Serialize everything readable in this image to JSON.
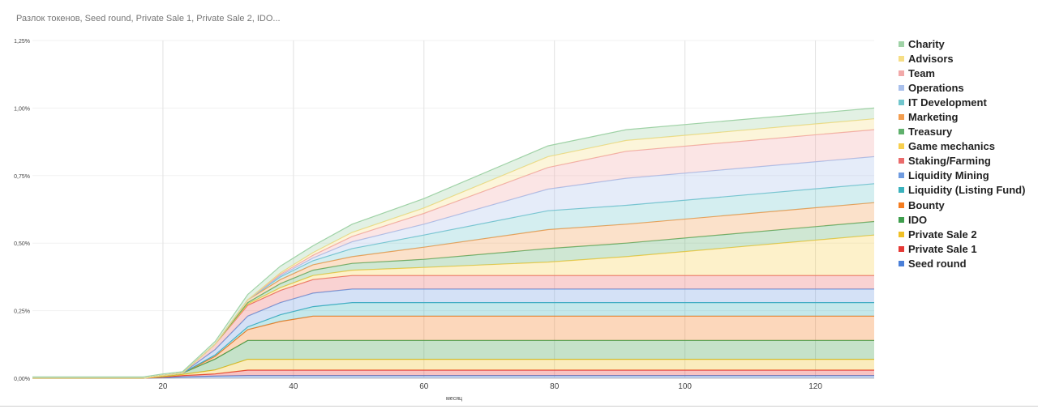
{
  "chart_data": {
    "type": "area",
    "stacked": true,
    "title": "Разлок токенов, Seed round, Private Sale 1, Private Sale 2, IDO...",
    "xlabel": "месяц",
    "ylabel": "",
    "xlim": [
      0,
      129
    ],
    "ylim": [
      0,
      1.25
    ],
    "x_ticks": [
      20,
      40,
      60,
      80,
      100,
      120
    ],
    "x_tick_labels": [
      "20",
      "40",
      "60",
      "80",
      "100",
      "120"
    ],
    "y_ticks": [
      0,
      0.25,
      0.5,
      0.75,
      1.0,
      1.25
    ],
    "y_tick_labels": [
      "0,00%",
      "0,25%",
      "0,50%",
      "0,75%",
      "1,00%",
      "1,25%"
    ],
    "grid": "vertical",
    "legend_position": "right",
    "x": [
      0,
      10,
      13,
      17,
      20,
      23,
      28,
      33,
      38,
      43,
      49,
      60,
      79,
      91,
      129
    ],
    "series": [
      {
        "name": "Seed round",
        "color": "#4a7fd8",
        "values": [
          0,
          0,
          0,
          0,
          0.002,
          0.005,
          0.008,
          0.01,
          0.01,
          0.01,
          0.01,
          0.01,
          0.01,
          0.01,
          0.01
        ]
      },
      {
        "name": "Private Sale 1",
        "color": "#e53935",
        "values": [
          0,
          0,
          0,
          0,
          0.002,
          0.005,
          0.008,
          0.02,
          0.02,
          0.02,
          0.02,
          0.02,
          0.02,
          0.02,
          0.02
        ]
      },
      {
        "name": "Private Sale 2",
        "color": "#f0c026",
        "values": [
          0,
          0,
          0,
          0,
          0.002,
          0.004,
          0.015,
          0.04,
          0.04,
          0.04,
          0.04,
          0.04,
          0.04,
          0.04,
          0.04
        ]
      },
      {
        "name": "IDO",
        "color": "#3f9e4d",
        "values": [
          0,
          0,
          0,
          0,
          0.005,
          0.005,
          0.04,
          0.07,
          0.07,
          0.07,
          0.07,
          0.07,
          0.07,
          0.07,
          0.07
        ]
      },
      {
        "name": "Bounty",
        "color": "#f57c1f",
        "values": [
          0,
          0,
          0,
          0,
          0,
          0,
          0.01,
          0.04,
          0.07,
          0.09,
          0.09,
          0.09,
          0.09,
          0.09,
          0.09
        ]
      },
      {
        "name": "Liquidity (Listing Fund)",
        "color": "#3ab2bd",
        "values": [
          0,
          0,
          0,
          0,
          0,
          0,
          0.005,
          0.01,
          0.025,
          0.035,
          0.05,
          0.05,
          0.05,
          0.05,
          0.05
        ]
      },
      {
        "name": "Liquidity Mining",
        "color": "#6f9be0",
        "values": [
          0,
          0,
          0,
          0,
          0,
          0,
          0.02,
          0.04,
          0.045,
          0.05,
          0.05,
          0.05,
          0.05,
          0.05,
          0.05
        ]
      },
      {
        "name": "Staking/Farming",
        "color": "#ea6b6b",
        "values": [
          0,
          0,
          0,
          0,
          0,
          0,
          0.02,
          0.04,
          0.045,
          0.05,
          0.05,
          0.05,
          0.05,
          0.05,
          0.05
        ]
      },
      {
        "name": "Game mechanics",
        "color": "#f7cf4e",
        "values": [
          0,
          0,
          0,
          0,
          0,
          0,
          0,
          0.005,
          0.01,
          0.015,
          0.02,
          0.03,
          0.05,
          0.07,
          0.15
        ]
      },
      {
        "name": "Treasury",
        "color": "#5fb06c",
        "values": [
          0,
          0,
          0,
          0,
          0,
          0,
          0,
          0.005,
          0.015,
          0.02,
          0.025,
          0.03,
          0.05,
          0.05,
          0.05
        ]
      },
      {
        "name": "Marketing",
        "color": "#f39d4e",
        "values": [
          0,
          0,
          0,
          0,
          0,
          0,
          0,
          0.01,
          0.015,
          0.02,
          0.025,
          0.045,
          0.07,
          0.07,
          0.07
        ]
      },
      {
        "name": "IT Development",
        "color": "#71c6cd",
        "values": [
          0,
          0,
          0,
          0,
          0,
          0,
          0,
          0,
          0.01,
          0.015,
          0.03,
          0.045,
          0.07,
          0.07,
          0.07
        ]
      },
      {
        "name": "Operations",
        "color": "#a9c0ec",
        "values": [
          0,
          0,
          0,
          0,
          0,
          0,
          0,
          0,
          0.005,
          0.01,
          0.025,
          0.04,
          0.08,
          0.1,
          0.1
        ]
      },
      {
        "name": "Team",
        "color": "#f2a9a9",
        "values": [
          0,
          0,
          0,
          0,
          0,
          0,
          0,
          0,
          0.005,
          0.01,
          0.02,
          0.04,
          0.08,
          0.1,
          0.1
        ]
      },
      {
        "name": "Advisors",
        "color": "#f6de86",
        "values": [
          0,
          0,
          0,
          0,
          0,
          0,
          0,
          0,
          0.005,
          0.01,
          0.015,
          0.02,
          0.04,
          0.04,
          0.04
        ]
      },
      {
        "name": "Charity",
        "color": "#9fd2a6",
        "values": [
          0.005,
          0.005,
          0.005,
          0.005,
          0.005,
          0.005,
          0.01,
          0.02,
          0.025,
          0.025,
          0.03,
          0.035,
          0.04,
          0.04,
          0.04
        ]
      }
    ]
  }
}
